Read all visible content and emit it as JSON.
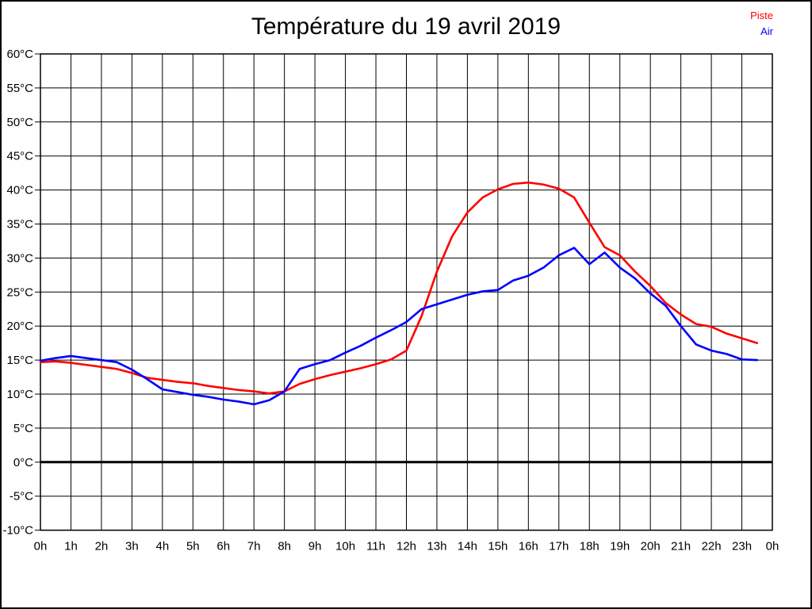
{
  "title": "Température du 19 avril 2019",
  "legend": [
    {
      "label": "Piste",
      "color": "#ff0000"
    },
    {
      "label": "Air",
      "color": "#0000ff"
    }
  ],
  "chart_data": {
    "type": "line",
    "title": "Température du 19 avril 2019",
    "xlabel": "",
    "ylabel": "",
    "grid": true,
    "legend_position": "top-right",
    "xlim": [
      0,
      24
    ],
    "ylim": [
      -10,
      60
    ],
    "ytick_step": 5,
    "x_tick_labels": [
      "0h",
      "1h",
      "2h",
      "3h",
      "4h",
      "5h",
      "6h",
      "7h",
      "8h",
      "9h",
      "10h",
      "11h",
      "12h",
      "13h",
      "14h",
      "15h",
      "16h",
      "17h",
      "18h",
      "19h",
      "20h",
      "21h",
      "22h",
      "23h",
      "0h"
    ],
    "y_tick_labels": [
      "60°C",
      "55°C",
      "50°C",
      "45°C",
      "40°C",
      "35°C",
      "30°C",
      "25°C",
      "20°C",
      "15°C",
      "10°C",
      "5°C",
      "0°C",
      "-5°C",
      "-10°C"
    ],
    "zero_line": {
      "value": 0,
      "color": "#000000",
      "width": 3
    },
    "x": [
      0,
      0.5,
      1,
      1.5,
      2,
      2.5,
      3,
      3.5,
      4,
      4.5,
      5,
      5.5,
      6,
      6.5,
      7,
      7.5,
      8,
      8.5,
      9,
      9.5,
      10,
      10.5,
      11,
      11.5,
      12,
      12.5,
      13,
      13.5,
      14,
      14.5,
      15,
      15.5,
      16,
      16.5,
      17,
      17.5,
      18,
      18.5,
      19,
      19.5,
      20,
      20.5,
      21,
      21.5,
      22,
      22.5,
      23,
      23.5
    ],
    "series": [
      {
        "name": "Piste",
        "color": "#ff0000",
        "values": [
          14.7,
          14.8,
          14.6,
          14.3,
          14.0,
          13.7,
          13.1,
          12.4,
          12.1,
          11.8,
          11.6,
          11.2,
          10.9,
          10.6,
          10.4,
          10.1,
          10.4,
          11.5,
          12.2,
          12.8,
          13.3,
          13.8,
          14.4,
          15.1,
          16.4,
          21.5,
          28.0,
          33.2,
          36.7,
          38.9,
          40.1,
          40.9,
          41.1,
          40.8,
          40.2,
          38.9,
          35.2,
          31.6,
          30.4,
          28.0,
          25.9,
          23.4,
          21.7,
          20.3,
          19.9,
          18.9,
          18.2,
          17.5
        ]
      },
      {
        "name": "Air",
        "color": "#0000ff",
        "values": [
          14.9,
          15.3,
          15.6,
          15.3,
          15.0,
          14.7,
          13.6,
          12.2,
          10.7,
          10.3,
          9.9,
          9.6,
          9.2,
          8.9,
          8.5,
          9.1,
          10.4,
          13.7,
          14.4,
          15.0,
          16.1,
          17.1,
          18.3,
          19.4,
          20.6,
          22.5,
          23.2,
          23.9,
          24.6,
          25.1,
          25.3,
          26.7,
          27.4,
          28.6,
          30.4,
          31.5,
          29.1,
          30.8,
          28.6,
          27.0,
          24.8,
          23.0,
          20.0,
          17.3,
          16.4,
          15.9,
          15.1,
          15.0
        ]
      }
    ]
  }
}
